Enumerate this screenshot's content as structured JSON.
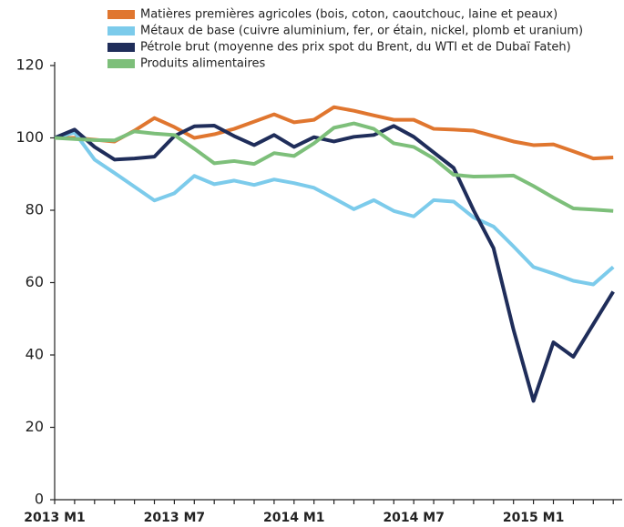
{
  "chart_data": {
    "type": "line",
    "categories": [
      "2013 M1",
      null,
      null,
      null,
      null,
      null,
      "2013 M7",
      null,
      null,
      null,
      null,
      null,
      "2014 M1",
      null,
      null,
      null,
      null,
      null,
      "2014 M7",
      null,
      null,
      null,
      null,
      null,
      "2015 M1",
      null,
      null,
      null,
      null
    ],
    "series": [
      {
        "name": "Matières premières agricoles (bois, coton, caoutchouc, laine et peaux)",
        "color": "#e0762f",
        "values": [
          100,
          100,
          99.5,
          99,
          102,
          105.5,
          103,
          100,
          101,
          102.5,
          104.5,
          106.5,
          104.3,
          105,
          108.5,
          107.5,
          106.2,
          105,
          105,
          102.5,
          102.3,
          102,
          100.5,
          99,
          98,
          98.2,
          96.3,
          94.3,
          94.6
        ]
      },
      {
        "name": "Métaux de base (cuivre aluminium, fer, or étain, nickel, plomb et uranium)",
        "color": "#7ccbeb",
        "values": [
          100,
          101.5,
          94,
          90.3,
          86.5,
          82.7,
          84.7,
          89.5,
          87.2,
          88.2,
          87,
          88.5,
          87.5,
          86.2,
          83.3,
          80.3,
          82.8,
          79.8,
          78.3,
          82.8,
          82.4,
          78,
          75.5,
          70,
          64.3,
          62.5,
          60.5,
          59.5,
          64.3
        ]
      },
      {
        "name": "Pétrole brut (moyenne des prix spot du Brent, du WTI et de Dubaï Fateh)",
        "color": "#1f2d5a",
        "values": [
          100,
          102.3,
          97.5,
          94,
          94.3,
          94.8,
          100.5,
          103.2,
          103.4,
          100.5,
          98,
          100.8,
          97.5,
          100.2,
          99,
          100.3,
          100.8,
          103.3,
          100.3,
          96,
          91.7,
          80,
          69.5,
          47,
          27.3,
          43.5,
          39.5,
          48.5,
          57.5
        ]
      },
      {
        "name": "Produits alimentaires",
        "color": "#7dbf7a",
        "values": [
          100,
          99.7,
          99.4,
          99.3,
          101.8,
          101.2,
          100.8,
          97,
          93,
          93.6,
          92.8,
          95.8,
          95,
          98.5,
          102.8,
          104,
          102.5,
          98.5,
          97.5,
          94.3,
          89.8,
          89.3,
          89.4,
          89.6,
          86.7,
          83.5,
          80.5,
          80.2,
          79.8
        ]
      }
    ],
    "ylim": [
      0,
      120
    ],
    "yticks": [
      0,
      20,
      40,
      60,
      80,
      100,
      120
    ],
    "legend": "top"
  }
}
